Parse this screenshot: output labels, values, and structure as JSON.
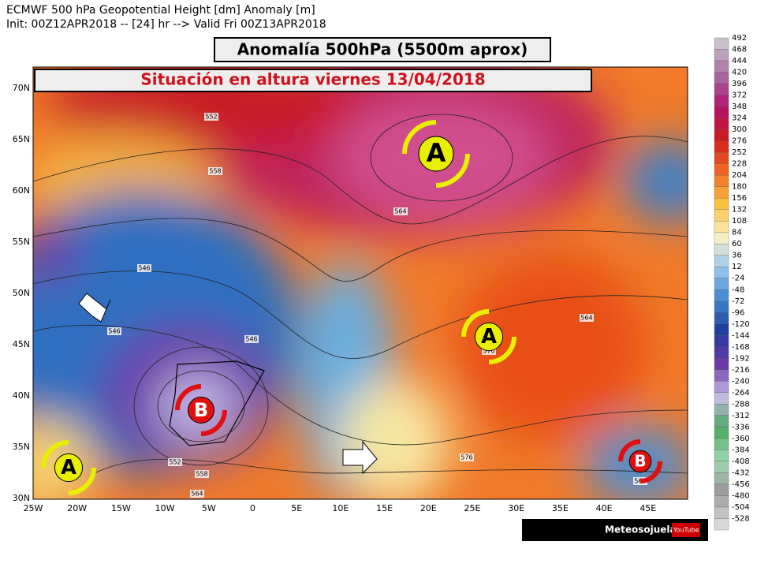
{
  "header": {
    "line1": "ECMWF 500 hPa Geopotential Height [dm] Anomaly [m]",
    "line2": "Init: 00Z12APR2018 -- [24] hr --> Valid Fri 00Z13APR2018"
  },
  "banners": {
    "title": "Anomalía 500hPa (5500m aprox)",
    "subtitle": "Situación en altura viernes 13/04/2018"
  },
  "map": {
    "lat_labels": [
      "70N",
      "65N",
      "60N",
      "55N",
      "50N",
      "45N",
      "40N",
      "35N",
      "30N"
    ],
    "lon_labels": [
      "25W",
      "20W",
      "15W",
      "10W",
      "5W",
      "0",
      "5E",
      "10E",
      "15E",
      "20E",
      "25E",
      "30E",
      "35E",
      "40E",
      "45E"
    ],
    "contour_labels": [
      "552",
      "558",
      "546",
      "546",
      "546",
      "564",
      "570",
      "564",
      "576",
      "552",
      "558",
      "564",
      "564"
    ],
    "centers": [
      "A",
      "A",
      "A",
      "B",
      "B"
    ]
  },
  "legend": {
    "labels": [
      492,
      468,
      444,
      420,
      396,
      372,
      348,
      324,
      300,
      276,
      252,
      228,
      204,
      180,
      156,
      132,
      108,
      84,
      60,
      36,
      12,
      -24,
      -48,
      -72,
      -96,
      -120,
      -144,
      -168,
      -192,
      -216,
      -240,
      -264,
      -288,
      -312,
      -336,
      -360,
      -384,
      -408,
      -432,
      -456,
      -480,
      -504,
      -528
    ]
  },
  "footer": {
    "brand": "Meteosojuela",
    "youtube": "YouTube"
  }
}
